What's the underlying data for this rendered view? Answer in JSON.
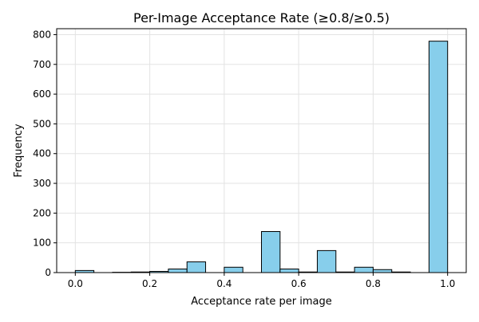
{
  "chart_data": {
    "type": "bar",
    "title": "Per-Image Acceptance Rate (≥0.8/≥0.5)",
    "xlabel": "Acceptance rate per image",
    "ylabel": "Frequency",
    "xlim": [
      -0.05,
      1.05
    ],
    "ylim": [
      0,
      820
    ],
    "xticks": [
      0.0,
      0.2,
      0.4,
      0.6,
      0.8,
      1.0
    ],
    "xtick_labels": [
      "0.0",
      "0.2",
      "0.4",
      "0.6",
      "0.8",
      "1.0"
    ],
    "yticks": [
      0,
      100,
      200,
      300,
      400,
      500,
      600,
      700,
      800
    ],
    "ytick_labels": [
      "0",
      "100",
      "200",
      "300",
      "400",
      "500",
      "600",
      "700",
      "800"
    ],
    "grid": true,
    "bar_color": "#87ceeb",
    "edge_color": "#000000",
    "bins": [
      {
        "x_start": 0.0,
        "x_end": 0.05,
        "count": 7
      },
      {
        "x_start": 0.05,
        "x_end": 0.1,
        "count": 0
      },
      {
        "x_start": 0.1,
        "x_end": 0.15,
        "count": 1
      },
      {
        "x_start": 0.15,
        "x_end": 0.2,
        "count": 2
      },
      {
        "x_start": 0.2,
        "x_end": 0.25,
        "count": 4
      },
      {
        "x_start": 0.25,
        "x_end": 0.3,
        "count": 12
      },
      {
        "x_start": 0.3,
        "x_end": 0.35,
        "count": 36
      },
      {
        "x_start": 0.35,
        "x_end": 0.4,
        "count": 0
      },
      {
        "x_start": 0.4,
        "x_end": 0.45,
        "count": 18
      },
      {
        "x_start": 0.45,
        "x_end": 0.5,
        "count": 0
      },
      {
        "x_start": 0.5,
        "x_end": 0.55,
        "count": 138
      },
      {
        "x_start": 0.55,
        "x_end": 0.6,
        "count": 12
      },
      {
        "x_start": 0.6,
        "x_end": 0.65,
        "count": 2
      },
      {
        "x_start": 0.65,
        "x_end": 0.7,
        "count": 74
      },
      {
        "x_start": 0.7,
        "x_end": 0.75,
        "count": 2
      },
      {
        "x_start": 0.75,
        "x_end": 0.8,
        "count": 18
      },
      {
        "x_start": 0.8,
        "x_end": 0.85,
        "count": 10
      },
      {
        "x_start": 0.85,
        "x_end": 0.9,
        "count": 2
      },
      {
        "x_start": 0.9,
        "x_end": 0.95,
        "count": 0
      },
      {
        "x_start": 0.95,
        "x_end": 1.0,
        "count": 778
      }
    ]
  }
}
